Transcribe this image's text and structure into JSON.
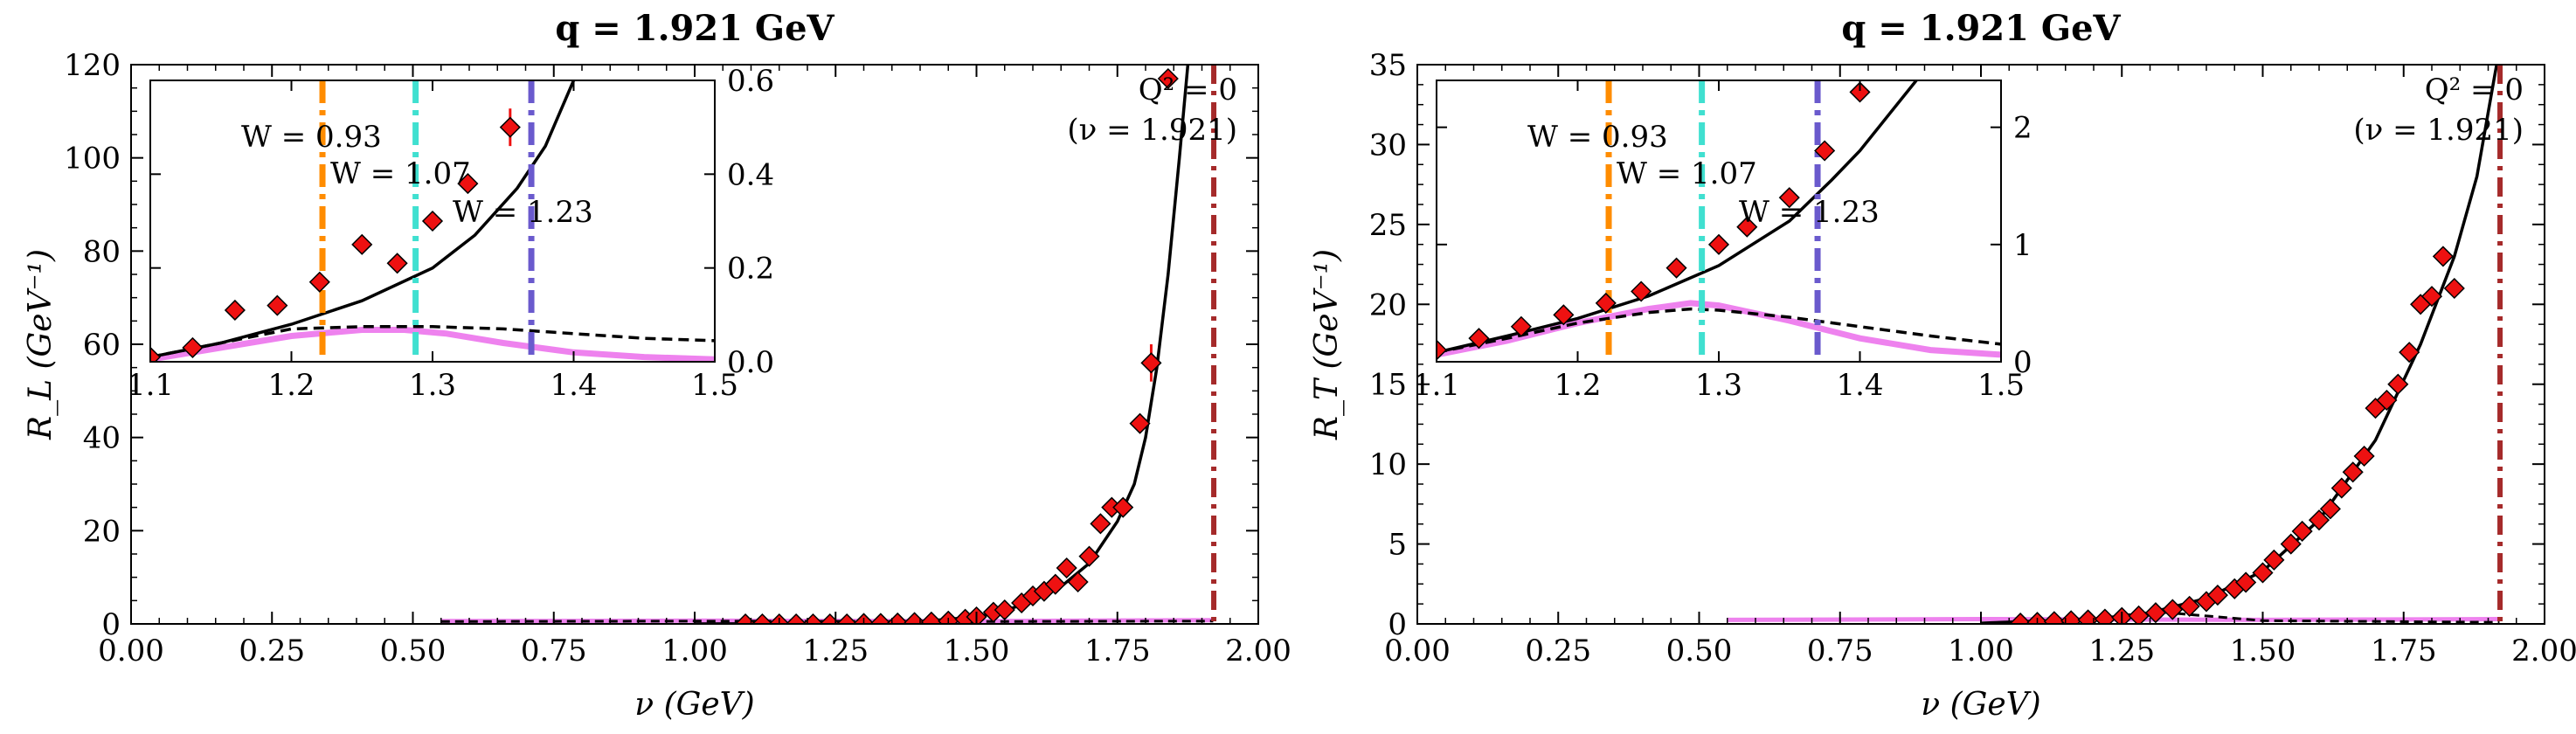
{
  "colors": {
    "data": "#ee1111",
    "fit": "#000000",
    "dashed": "#000000",
    "magenta": "#ee82ee",
    "w093": "#ff8c00",
    "w107": "#40e0d0",
    "w123": "#6a5acd",
    "qzero": "#a52a2a"
  },
  "chart_data": [
    {
      "type": "scatter",
      "title": "q = 1.921 GeV",
      "xlabel": "ν (GeV)",
      "ylabel": "R_L (GeV⁻¹)",
      "xlim": [
        0,
        2.0
      ],
      "ylim": [
        0,
        120
      ],
      "xticks": [
        0,
        0.25,
        0.5,
        0.75,
        1.0,
        1.25,
        1.5,
        1.75,
        2.0
      ],
      "xtick_labels": [
        "0.00",
        "0.25",
        "0.50",
        "0.75",
        "1.00",
        "1.25",
        "1.50",
        "1.75",
        "2.00"
      ],
      "yticks": [
        0,
        20,
        40,
        60,
        80,
        100,
        120
      ],
      "ytick_labels": [
        "0",
        "20",
        "40",
        "60",
        "80",
        "100",
        "120"
      ],
      "annotation_line1": "Q² = 0",
      "annotation_line2": "(ν = 1.921)",
      "qzero_nu": 1.921,
      "data_points": [
        [
          1.09,
          0.0
        ],
        [
          1.12,
          0.0
        ],
        [
          1.15,
          0.0
        ],
        [
          1.18,
          0.0
        ],
        [
          1.21,
          0.0
        ],
        [
          1.24,
          0.0
        ],
        [
          1.27,
          0.0
        ],
        [
          1.3,
          0.1
        ],
        [
          1.33,
          0.1
        ],
        [
          1.36,
          0.2
        ],
        [
          1.39,
          0.3
        ],
        [
          1.42,
          0.4
        ],
        [
          1.45,
          0.6
        ],
        [
          1.48,
          1.0
        ],
        [
          1.5,
          1.5
        ],
        [
          1.53,
          2.5
        ],
        [
          1.55,
          3.0
        ],
        [
          1.58,
          4.5
        ],
        [
          1.6,
          6.0
        ],
        [
          1.62,
          7.0
        ],
        [
          1.64,
          8.5
        ],
        [
          1.66,
          12.0
        ],
        [
          1.68,
          9.0
        ],
        [
          1.7,
          14.5
        ],
        [
          1.72,
          21.5
        ],
        [
          1.74,
          25.0
        ],
        [
          1.76,
          25.0
        ],
        [
          1.79,
          43.0
        ],
        [
          1.81,
          56.0
        ],
        [
          1.84,
          117.0
        ]
      ],
      "error_bars": [
        [
          1.81,
          52.0,
          60.0
        ]
      ],
      "fit_curve": [
        [
          1.0,
          0.0
        ],
        [
          1.3,
          0.1
        ],
        [
          1.4,
          0.5
        ],
        [
          1.5,
          1.5
        ],
        [
          1.55,
          2.8
        ],
        [
          1.6,
          5.0
        ],
        [
          1.65,
          8.0
        ],
        [
          1.7,
          13.0
        ],
        [
          1.75,
          22.0
        ],
        [
          1.78,
          30.0
        ],
        [
          1.8,
          40.0
        ],
        [
          1.82,
          55.0
        ],
        [
          1.84,
          75.0
        ],
        [
          1.86,
          100.0
        ],
        [
          1.875,
          120.0
        ]
      ],
      "magenta_curve": [
        [
          0.55,
          0.6
        ],
        [
          1.0,
          0.7
        ],
        [
          1.5,
          0.6
        ],
        [
          1.92,
          0.8
        ]
      ],
      "dashed_curve": [
        [
          0.55,
          0.5
        ],
        [
          1.0,
          0.6
        ],
        [
          1.5,
          0.5
        ],
        [
          1.92,
          0.6
        ]
      ],
      "inset": {
        "xlim": [
          1.1,
          1.5
        ],
        "ylim": [
          0,
          0.6
        ],
        "xticks": [
          1.1,
          1.2,
          1.3,
          1.4,
          1.5
        ],
        "xtick_labels": [
          "1.1",
          "1.2",
          "1.3",
          "1.4",
          "1.5"
        ],
        "yticks": [
          0,
          0.2,
          0.4,
          0.6
        ],
        "ytick_labels": [
          "0.0",
          "0.2",
          "0.4",
          "0.6"
        ],
        "w_lines": [
          1.222,
          1.288,
          1.37
        ],
        "w_labels": [
          "W = 0.93",
          "W = 1.07",
          "W = 1.23"
        ],
        "data_points": [
          [
            1.1,
            0.01
          ],
          [
            1.13,
            0.03
          ],
          [
            1.16,
            0.11
          ],
          [
            1.19,
            0.12
          ],
          [
            1.22,
            0.17
          ],
          [
            1.25,
            0.25
          ],
          [
            1.275,
            0.21
          ],
          [
            1.3,
            0.3
          ],
          [
            1.325,
            0.38
          ],
          [
            1.355,
            0.5
          ]
        ],
        "error_bars": [
          [
            1.355,
            0.46,
            0.54
          ]
        ],
        "fit_curve": [
          [
            1.1,
            0.01
          ],
          [
            1.15,
            0.04
          ],
          [
            1.2,
            0.08
          ],
          [
            1.25,
            0.13
          ],
          [
            1.3,
            0.2
          ],
          [
            1.33,
            0.27
          ],
          [
            1.36,
            0.37
          ],
          [
            1.38,
            0.46
          ],
          [
            1.4,
            0.6
          ]
        ],
        "dashed_curve": [
          [
            1.1,
            0.01
          ],
          [
            1.15,
            0.04
          ],
          [
            1.2,
            0.07
          ],
          [
            1.25,
            0.075
          ],
          [
            1.28,
            0.075
          ],
          [
            1.3,
            0.075
          ],
          [
            1.35,
            0.07
          ],
          [
            1.4,
            0.06
          ],
          [
            1.45,
            0.05
          ],
          [
            1.5,
            0.045
          ]
        ],
        "magenta_curve": [
          [
            1.1,
            0.005
          ],
          [
            1.15,
            0.03
          ],
          [
            1.2,
            0.055
          ],
          [
            1.25,
            0.068
          ],
          [
            1.28,
            0.068
          ],
          [
            1.31,
            0.06
          ],
          [
            1.35,
            0.04
          ],
          [
            1.4,
            0.02
          ],
          [
            1.45,
            0.01
          ],
          [
            1.5,
            0.005
          ]
        ]
      }
    },
    {
      "type": "scatter",
      "title": "q = 1.921 GeV",
      "xlabel": "ν (GeV)",
      "ylabel": "R_T (GeV⁻¹)",
      "xlim": [
        0,
        2.0
      ],
      "ylim": [
        0,
        35
      ],
      "xticks": [
        0,
        0.25,
        0.5,
        0.75,
        1.0,
        1.25,
        1.5,
        1.75,
        2.0
      ],
      "xtick_labels": [
        "0.00",
        "0.25",
        "0.50",
        "0.75",
        "1.00",
        "1.25",
        "1.50",
        "1.75",
        "2.00"
      ],
      "yticks": [
        0,
        5,
        10,
        15,
        20,
        25,
        30,
        35
      ],
      "ytick_labels": [
        "0",
        "5",
        "10",
        "15",
        "20",
        "25",
        "30",
        "35"
      ],
      "annotation_line1": "Q² = 0",
      "annotation_line2": "(ν = 1.921)",
      "qzero_nu": 1.921,
      "data_points": [
        [
          1.07,
          0.05
        ],
        [
          1.1,
          0.1
        ],
        [
          1.13,
          0.15
        ],
        [
          1.16,
          0.2
        ],
        [
          1.19,
          0.25
        ],
        [
          1.22,
          0.3
        ],
        [
          1.25,
          0.4
        ],
        [
          1.28,
          0.5
        ],
        [
          1.31,
          0.7
        ],
        [
          1.34,
          0.9
        ],
        [
          1.37,
          1.1
        ],
        [
          1.4,
          1.4
        ],
        [
          1.42,
          1.8
        ],
        [
          1.45,
          2.2
        ],
        [
          1.47,
          2.6
        ],
        [
          1.5,
          3.2
        ],
        [
          1.52,
          4.0
        ],
        [
          1.55,
          5.0
        ],
        [
          1.57,
          5.8
        ],
        [
          1.6,
          6.5
        ],
        [
          1.62,
          7.2
        ],
        [
          1.64,
          8.5
        ],
        [
          1.66,
          9.5
        ],
        [
          1.68,
          10.5
        ],
        [
          1.7,
          13.5
        ],
        [
          1.72,
          14.0
        ],
        [
          1.74,
          15.0
        ],
        [
          1.76,
          17.0
        ],
        [
          1.78,
          20.0
        ],
        [
          1.8,
          20.5
        ],
        [
          1.82,
          23.0
        ],
        [
          1.84,
          21.0
        ]
      ],
      "fit_curve": [
        [
          1.0,
          0.05
        ],
        [
          1.2,
          0.3
        ],
        [
          1.3,
          0.7
        ],
        [
          1.4,
          1.6
        ],
        [
          1.5,
          3.3
        ],
        [
          1.6,
          6.5
        ],
        [
          1.7,
          11.5
        ],
        [
          1.78,
          17.5
        ],
        [
          1.84,
          23.0
        ],
        [
          1.88,
          28.0
        ],
        [
          1.91,
          34.0
        ],
        [
          1.915,
          35.0
        ]
      ],
      "magenta_curve": [
        [
          0.55,
          0.25
        ],
        [
          1.0,
          0.3
        ],
        [
          1.5,
          0.25
        ],
        [
          1.92,
          0.3
        ]
      ],
      "dashed_curve": [
        [
          1.2,
          0.2
        ],
        [
          1.3,
          0.8
        ],
        [
          1.4,
          0.5
        ],
        [
          1.5,
          0.2
        ],
        [
          1.92,
          0.1
        ]
      ],
      "inset": {
        "xlim": [
          1.1,
          1.5
        ],
        "ylim": [
          0,
          2.4
        ],
        "xticks": [
          1.1,
          1.2,
          1.3,
          1.4,
          1.5
        ],
        "xtick_labels": [
          "1.1",
          "1.2",
          "1.3",
          "1.4",
          "1.5"
        ],
        "yticks": [
          0,
          1,
          2
        ],
        "ytick_labels": [
          "0",
          "1",
          "2"
        ],
        "w_lines": [
          1.222,
          1.288,
          1.37
        ],
        "w_labels": [
          "W = 0.93",
          "W = 1.07",
          "W = 1.23"
        ],
        "data_points": [
          [
            1.1,
            0.1
          ],
          [
            1.13,
            0.2
          ],
          [
            1.16,
            0.3
          ],
          [
            1.19,
            0.4
          ],
          [
            1.22,
            0.5
          ],
          [
            1.245,
            0.6
          ],
          [
            1.27,
            0.8
          ],
          [
            1.3,
            1.0
          ],
          [
            1.32,
            1.15
          ],
          [
            1.35,
            1.4
          ],
          [
            1.375,
            1.8
          ],
          [
            1.4,
            2.3
          ]
        ],
        "fit_curve": [
          [
            1.1,
            0.08
          ],
          [
            1.15,
            0.22
          ],
          [
            1.2,
            0.37
          ],
          [
            1.25,
            0.56
          ],
          [
            1.3,
            0.82
          ],
          [
            1.35,
            1.2
          ],
          [
            1.38,
            1.55
          ],
          [
            1.4,
            1.8
          ],
          [
            1.42,
            2.1
          ],
          [
            1.44,
            2.4
          ]
        ],
        "dashed_curve": [
          [
            1.1,
            0.08
          ],
          [
            1.15,
            0.2
          ],
          [
            1.2,
            0.33
          ],
          [
            1.25,
            0.42
          ],
          [
            1.28,
            0.45
          ],
          [
            1.3,
            0.44
          ],
          [
            1.35,
            0.38
          ],
          [
            1.4,
            0.3
          ],
          [
            1.45,
            0.22
          ],
          [
            1.5,
            0.15
          ]
        ],
        "magenta_curve": [
          [
            1.1,
            0.06
          ],
          [
            1.15,
            0.18
          ],
          [
            1.2,
            0.33
          ],
          [
            1.25,
            0.45
          ],
          [
            1.28,
            0.5
          ],
          [
            1.3,
            0.48
          ],
          [
            1.35,
            0.35
          ],
          [
            1.4,
            0.2
          ],
          [
            1.45,
            0.1
          ],
          [
            1.5,
            0.06
          ]
        ]
      }
    }
  ]
}
